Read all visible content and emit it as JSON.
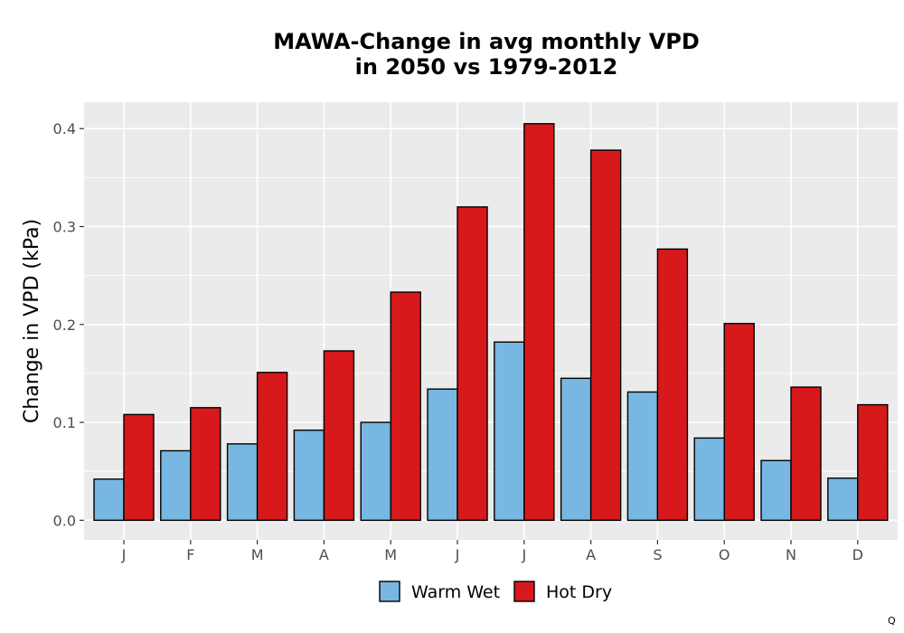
{
  "chart_data": {
    "type": "bar",
    "title_lines": [
      "MAWA-Change in avg monthly VPD",
      "in 2050 vs 1979-2012"
    ],
    "xlabel": "",
    "ylabel": "Change in VPD (kPa)",
    "categories": [
      "J",
      "F",
      "M",
      "A",
      "M",
      "J",
      "J",
      "A",
      "S",
      "O",
      "N",
      "D"
    ],
    "series": [
      {
        "name": "Warm Wet",
        "color": "#77b7e2",
        "values": [
          0.042,
          0.071,
          0.078,
          0.092,
          0.1,
          0.134,
          0.182,
          0.145,
          0.131,
          0.084,
          0.061,
          0.043
        ]
      },
      {
        "name": "Hot Dry",
        "color": "#d7191c",
        "values": [
          0.108,
          0.115,
          0.151,
          0.173,
          0.233,
          0.32,
          0.405,
          0.378,
          0.277,
          0.201,
          0.136,
          0.118
        ]
      }
    ],
    "ylim": [
      -0.02,
      0.427
    ],
    "yticks": [
      0.0,
      0.1,
      0.2,
      0.3,
      0.4
    ],
    "ytick_labels": [
      "0.0",
      "0.1",
      "0.2",
      "0.3",
      "0.4"
    ],
    "grid": true,
    "legend_position": "bottom",
    "panel_background": "#ebebeb"
  },
  "corner_mark": "Q"
}
